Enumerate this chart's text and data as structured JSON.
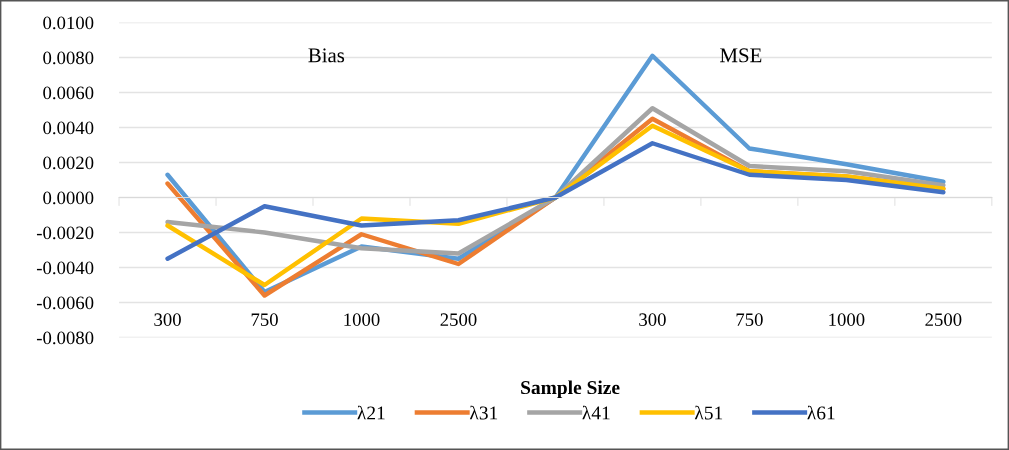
{
  "chart_data": {
    "type": "line",
    "xlabel": "Sample Size",
    "annotations": [
      "Bias",
      "MSE"
    ],
    "categories": [
      "300",
      "750",
      "1000",
      "2500",
      null,
      "300",
      "750",
      "1000",
      "2500"
    ],
    "series": [
      {
        "name": "λ21",
        "color": "#5b9bd5",
        "values": [
          0.0013,
          -0.0054,
          -0.0028,
          -0.0035,
          0.0,
          0.0081,
          0.0028,
          0.0019,
          0.0009
        ]
      },
      {
        "name": "λ31",
        "color": "#ed7d31",
        "values": [
          0.0008,
          -0.0056,
          -0.0021,
          -0.0038,
          0.0,
          0.0045,
          0.0015,
          0.0012,
          0.0005
        ]
      },
      {
        "name": "λ41",
        "color": "#a5a5a5",
        "values": [
          -0.0014,
          -0.002,
          -0.0029,
          -0.0032,
          0.0,
          0.0051,
          0.0018,
          0.0015,
          0.0007
        ]
      },
      {
        "name": "λ51",
        "color": "#ffc000",
        "values": [
          -0.0016,
          -0.005,
          -0.0012,
          -0.0015,
          0.0,
          0.0041,
          0.0015,
          0.0012,
          0.0005
        ]
      },
      {
        "name": "λ61",
        "color": "#4472c4",
        "values": [
          -0.0035,
          -0.0005,
          -0.0016,
          -0.0013,
          0.0,
          0.0031,
          0.0013,
          0.001,
          0.0003
        ]
      }
    ],
    "ylim": [
      -0.008,
      0.01
    ],
    "yticks": [
      {
        "value": -0.008,
        "label": "-0.0080"
      },
      {
        "value": -0.006,
        "label": "-0.0060"
      },
      {
        "value": -0.004,
        "label": "-0.0040"
      },
      {
        "value": -0.002,
        "label": "-0.0020"
      },
      {
        "value": 0.0,
        "label": "0.0000"
      },
      {
        "value": 0.002,
        "label": "0.0020"
      },
      {
        "value": 0.004,
        "label": "0.0040"
      },
      {
        "value": 0.006,
        "label": "0.0060"
      },
      {
        "value": 0.008,
        "label": "0.0080"
      },
      {
        "value": 0.01,
        "label": "0.0100"
      }
    ],
    "grid": "y",
    "legend": "bottom",
    "marker": "none",
    "line_style": "solid"
  }
}
